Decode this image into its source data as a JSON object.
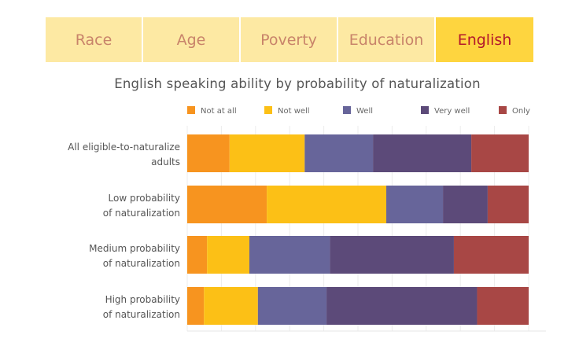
{
  "tabs": [
    {
      "label": "Race",
      "active": false
    },
    {
      "label": "Age",
      "active": false
    },
    {
      "label": "Poverty",
      "active": false
    },
    {
      "label": "Education",
      "active": false
    },
    {
      "label": "English",
      "active": true
    }
  ],
  "colors": {
    "tab_bg": "#fde9a3",
    "tab_active_bg": "#fed53f",
    "tab_text": "#c8836a",
    "tab_active_text": "#b3182b"
  },
  "chart_data": {
    "type": "bar",
    "orientation": "horizontal",
    "stacked": true,
    "title": "English speaking ability by probability of naturalization",
    "legend_position": "top",
    "grid": true,
    "xlim": [
      0,
      100
    ],
    "categories": [
      [
        "All eligible-to-naturalize",
        "adults"
      ],
      [
        "Low probability",
        "of naturalization"
      ],
      [
        "Medium probability",
        "of naturalization"
      ],
      [
        "High probability",
        "of naturalization"
      ]
    ],
    "series": [
      {
        "name": "Not at all",
        "color": "#f7941f",
        "values": [
          12.4,
          23.3,
          5.8,
          4.9
        ]
      },
      {
        "name": "Not well",
        "color": "#fcc016",
        "values": [
          22.0,
          35.0,
          12.4,
          15.8
        ]
      },
      {
        "name": "Well",
        "color": "#67659a",
        "values": [
          20.0,
          16.6,
          23.6,
          20.1
        ]
      },
      {
        "name": "Very well",
        "color": "#5c4a79",
        "values": [
          28.8,
          13.1,
          36.3,
          44.1
        ]
      },
      {
        "name": "Only",
        "color": "#a84745",
        "values": [
          16.8,
          12.0,
          21.9,
          15.1
        ]
      }
    ]
  }
}
